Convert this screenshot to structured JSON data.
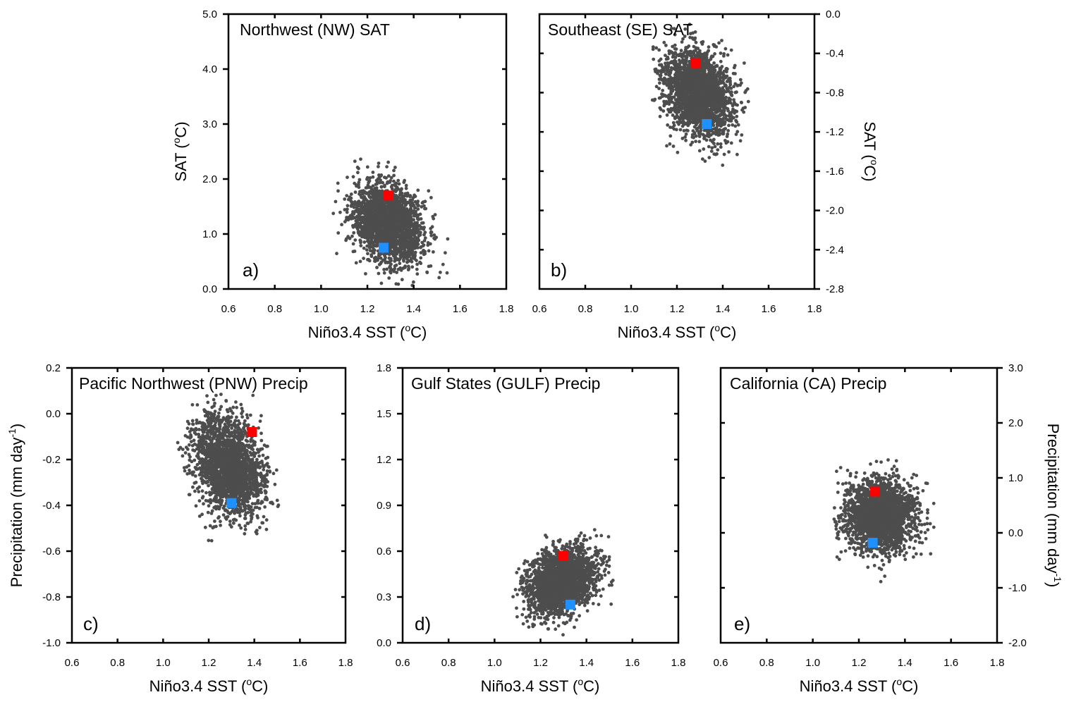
{
  "colors": {
    "points": "#4d4d4d",
    "red_marker": "#ff0000",
    "blue_marker": "#1e90ff",
    "axes": "#000000"
  },
  "chart_data": [
    {
      "id": "a",
      "type": "scatter",
      "title": "Northwest (NW) SAT",
      "panel_label": "a)",
      "xlabel": "Niño3.4 SST (",
      "xlabel_unit": "o",
      "xlabel_end": "C)",
      "ylabel": "SAT (",
      "ylabel_unit": "o",
      "ylabel_end": "C)",
      "ylabel_side": "left",
      "xlim": [
        0.6,
        1.8
      ],
      "ylim": [
        0.0,
        5.0
      ],
      "xticks": [
        "0.6",
        "0.8",
        "1.0",
        "1.2",
        "1.4",
        "1.6",
        "1.8"
      ],
      "yticks": [
        "0.0",
        "1.0",
        "2.0",
        "3.0",
        "4.0",
        "5.0"
      ],
      "cloud": {
        "x_mean": 1.29,
        "y_mean": 1.2,
        "x_sd": 0.075,
        "y_sd": 0.36,
        "rho": -0.25,
        "n": 2200,
        "x_range": [
          1.04,
          1.55
        ],
        "y_range": [
          0.05,
          2.4
        ]
      },
      "red_marker": {
        "x": 1.29,
        "y": 1.7
      },
      "blue_marker": {
        "x": 1.27,
        "y": 0.75
      }
    },
    {
      "id": "b",
      "type": "scatter",
      "title": "Southeast (SE) SAT",
      "panel_label": "b)",
      "xlabel": "Niño3.4 SST (",
      "xlabel_unit": "o",
      "xlabel_end": "C)",
      "ylabel": "SAT (",
      "ylabel_unit": "o",
      "ylabel_end": "C)",
      "ylabel_side": "right",
      "xlim": [
        0.6,
        1.8
      ],
      "ylim": [
        -2.8,
        0.0
      ],
      "xticks": [
        "0.6",
        "0.8",
        "1.0",
        "1.2",
        "1.4",
        "1.6",
        "1.8"
      ],
      "yticks": [
        "-2.8",
        "-2.4",
        "-2.0",
        "-1.6",
        "-1.2",
        "-0.8",
        "-0.4",
        "0.0"
      ],
      "cloud": {
        "x_mean": 1.29,
        "y_mean": -0.8,
        "x_sd": 0.075,
        "y_sd": 0.22,
        "rho": -0.25,
        "n": 2200,
        "x_range": [
          1.09,
          1.55
        ],
        "y_range": [
          -1.58,
          -0.06
        ]
      },
      "red_marker": {
        "x": 1.28,
        "y": -0.5
      },
      "blue_marker": {
        "x": 1.33,
        "y": -1.12
      }
    },
    {
      "id": "c",
      "type": "scatter",
      "title": "Pacific Northwest (PNW) Precip",
      "panel_label": "c)",
      "xlabel": "Niño3.4 SST (",
      "xlabel_unit": "o",
      "xlabel_end": "C)",
      "ylabel": "Precipitation (mm day",
      "ylabel_unit": "-1",
      "ylabel_end": ")",
      "ylabel_side": "left",
      "xlim": [
        0.6,
        1.8
      ],
      "ylim": [
        -1.0,
        0.2
      ],
      "xticks": [
        "0.6",
        "0.8",
        "1.0",
        "1.2",
        "1.4",
        "1.6",
        "1.8"
      ],
      "yticks": [
        "-1.0",
        "-0.8",
        "-0.6",
        "-0.4",
        "-0.2",
        "0.0",
        "0.2"
      ],
      "cloud": {
        "x_mean": 1.29,
        "y_mean": -0.23,
        "x_sd": 0.075,
        "y_sd": 0.11,
        "rho": -0.25,
        "n": 2200,
        "x_range": [
          1.05,
          1.55
        ],
        "y_range": [
          -0.57,
          0.09
        ]
      },
      "red_marker": {
        "x": 1.39,
        "y": -0.08
      },
      "blue_marker": {
        "x": 1.3,
        "y": -0.39
      }
    },
    {
      "id": "d",
      "type": "scatter",
      "title": "Gulf States (GULF) Precip",
      "panel_label": "d)",
      "xlabel": "Niño3.4 SST (",
      "xlabel_unit": "o",
      "xlabel_end": "C)",
      "ylabel": "",
      "ylabel_side": "none",
      "xlim": [
        0.6,
        1.8
      ],
      "ylim": [
        0.0,
        1.8
      ],
      "xticks": [
        "0.6",
        "0.8",
        "1.0",
        "1.2",
        "1.4",
        "1.6",
        "1.8"
      ],
      "yticks": [
        "0.0",
        "0.3",
        "0.6",
        "0.9",
        "1.2",
        "1.5",
        "1.8"
      ],
      "cloud": {
        "x_mean": 1.29,
        "y_mean": 0.4,
        "x_sd": 0.075,
        "y_sd": 0.11,
        "rho": 0.3,
        "n": 2200,
        "x_range": [
          1.07,
          1.55
        ],
        "y_range": [
          0.05,
          0.76
        ]
      },
      "red_marker": {
        "x": 1.3,
        "y": 0.57
      },
      "blue_marker": {
        "x": 1.33,
        "y": 0.25
      }
    },
    {
      "id": "e",
      "type": "scatter",
      "title": "California (CA) Precip",
      "panel_label": "e)",
      "xlabel": "Niño3.4 SST (",
      "xlabel_unit": "o",
      "xlabel_end": "C)",
      "ylabel": "Precipitation (mm day",
      "ylabel_unit": "-1",
      "ylabel_end": ")",
      "ylabel_side": "right",
      "xlim": [
        0.6,
        1.8
      ],
      "ylim": [
        -2.0,
        3.0
      ],
      "xticks": [
        "0.6",
        "0.8",
        "1.0",
        "1.2",
        "1.4",
        "1.6",
        "1.8"
      ],
      "yticks": [
        "-2.0",
        "-1.0",
        "0.0",
        "1.0",
        "2.0",
        "3.0"
      ],
      "cloud": {
        "x_mean": 1.29,
        "y_mean": 0.3,
        "x_sd": 0.075,
        "y_sd": 0.32,
        "rho": 0.0,
        "n": 2200,
        "x_range": [
          1.09,
          1.55
        ],
        "y_range": [
          -1.1,
          1.35
        ]
      },
      "red_marker": {
        "x": 1.27,
        "y": 0.75
      },
      "blue_marker": {
        "x": 1.26,
        "y": -0.18
      }
    }
  ]
}
